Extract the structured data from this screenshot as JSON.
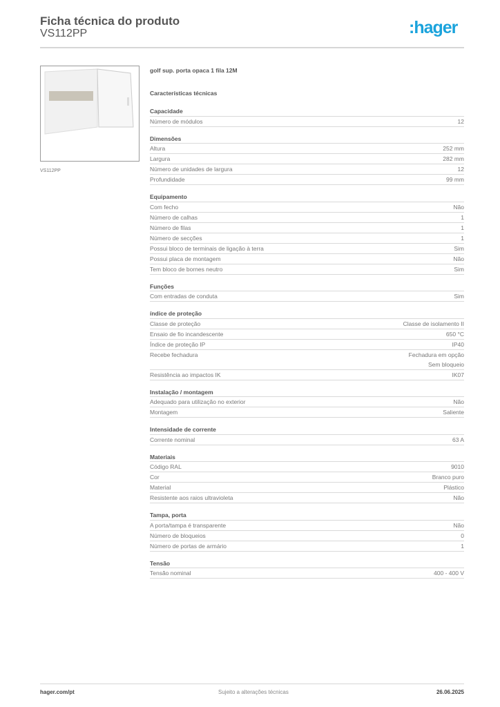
{
  "header": {
    "title": "Ficha técnica do produto",
    "subtitle": "VS112PP",
    "logo": ":hager",
    "brand_color": "#1aa3dc"
  },
  "image_caption": "VS112PP",
  "product_name": "golf sup. porta opaca 1 fila 12M",
  "tech_title": "Características técnicas",
  "sections": [
    {
      "title": "Capacidade",
      "rows": [
        [
          "Número de módulos",
          "12"
        ]
      ]
    },
    {
      "title": "Dimensões",
      "rows": [
        [
          "Altura",
          "252 mm"
        ],
        [
          "Largura",
          "282 mm"
        ],
        [
          "Número de unidades de largura",
          "12"
        ],
        [
          "Profundidade",
          "99 mm"
        ]
      ]
    },
    {
      "title": "Equipamento",
      "rows": [
        [
          "Com fecho",
          "Não"
        ],
        [
          "Número de calhas",
          "1"
        ],
        [
          "Número de filas",
          "1"
        ],
        [
          "Número de secções",
          "1"
        ],
        [
          "Possui bloco de terminais de ligação à terra",
          "Sim"
        ],
        [
          "Possui placa de montagem",
          "Não"
        ],
        [
          "Tem bloco de bornes neutro",
          "Sim"
        ]
      ]
    },
    {
      "title": "Funções",
      "rows": [
        [
          "Com entradas de conduta",
          "Sim"
        ]
      ]
    },
    {
      "title": "índice de proteção",
      "rows": [
        [
          "Classe de proteção",
          "Classe de isolamento II"
        ],
        [
          "Ensaio de fio incandescente",
          "650 °C"
        ],
        [
          "Índice de proteção IP",
          "IP40"
        ],
        [
          "Recebe fechadura",
          "Fechadura em opção\nSem bloqueio"
        ],
        [
          "Resistência ao impactos IK",
          "IK07"
        ]
      ]
    },
    {
      "title": "Instalação / montagem",
      "rows": [
        [
          "Adequado para utilização no exterior",
          "Não"
        ],
        [
          "Montagem",
          "Saliente"
        ]
      ]
    },
    {
      "title": "Intensidade de corrente",
      "rows": [
        [
          "Corrente nominal",
          "63 A"
        ]
      ]
    },
    {
      "title": "Materiais",
      "rows": [
        [
          "Código RAL",
          "9010"
        ],
        [
          "Cor",
          "Branco puro"
        ],
        [
          "Material",
          "Plástico"
        ],
        [
          "Resistente aos raios ultravioleta",
          "Não"
        ]
      ]
    },
    {
      "title": "Tampa, porta",
      "rows": [
        [
          "A porta/tampa é transparente",
          "Não"
        ],
        [
          "Número de bloqueios",
          "0"
        ],
        [
          "Número de portas de armário",
          "1"
        ]
      ]
    },
    {
      "title": "Tensão",
      "rows": [
        [
          "Tensão nominal",
          "400 - 400 V"
        ]
      ]
    }
  ],
  "footer": {
    "left": "hager.com/pt",
    "center": "Sujeito a alterações técnicas",
    "right": "26.06.2025"
  }
}
